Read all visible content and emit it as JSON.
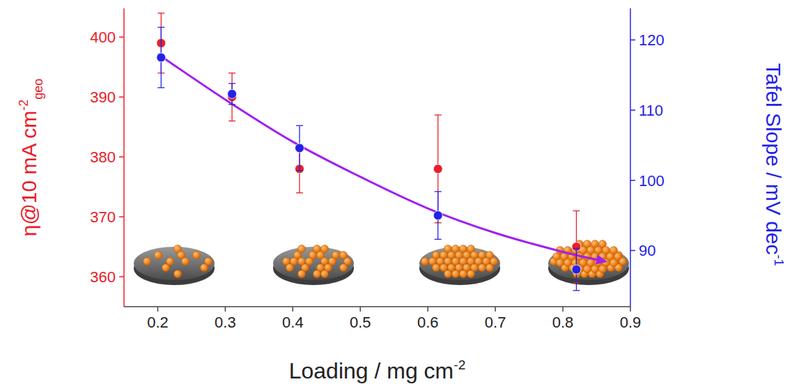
{
  "chart_data": {
    "type": "scatter",
    "xlabel": {
      "text": "Loading / mg cm",
      "sup": "-2"
    },
    "ylabel": {
      "text": "η@10 mA cm",
      "sup": "-2",
      "sub": "geo"
    },
    "y2label": {
      "text": "Tafel Slope / mV dec",
      "sup": "-1"
    },
    "xlim": [
      0.15,
      0.9
    ],
    "xticks": [
      {
        "value": 0.2,
        "label": "0.2"
      },
      {
        "value": 0.3,
        "label": "0.3"
      },
      {
        "value": 0.4,
        "label": "0.4"
      },
      {
        "value": 0.5,
        "label": "0.5"
      },
      {
        "value": 0.6,
        "label": "0.6"
      },
      {
        "value": 0.7,
        "label": "0.7"
      },
      {
        "value": 0.8,
        "label": "0.8"
      },
      {
        "value": 0.9,
        "label": "0.9"
      }
    ],
    "ylim": [
      355,
      404.8
    ],
    "yticks": [
      360,
      370,
      380,
      390,
      400
    ],
    "y2lim": [
      82,
      124.5
    ],
    "y2ticks": [
      90,
      100,
      110,
      120
    ],
    "grid": false,
    "series": [
      {
        "type": "scatter",
        "color": "#e8202a",
        "marker": "circle",
        "x": [
          0.205,
          0.31,
          0.41,
          0.615,
          0.82
        ],
        "values": [
          399,
          390,
          378,
          378,
          365
        ],
        "errors": [
          5,
          4,
          4,
          9,
          6
        ]
      },
      {
        "type": "scatter",
        "color": "#2323e6",
        "marker": "circle",
        "axis": "y2",
        "x": [
          0.205,
          0.31,
          0.41,
          0.615,
          0.82
        ],
        "values": [
          117.5,
          112.3,
          104.6,
          95,
          87.3
        ],
        "errors": [
          4.3,
          1.5,
          3.2,
          3.4,
          3
        ]
      },
      {
        "type": "line",
        "color": "#a020f0",
        "marker": "arrow",
        "line_style": "solid",
        "axis": "y2",
        "x": [
          0.2,
          0.3,
          0.4,
          0.5,
          0.6,
          0.7,
          0.8,
          0.86
        ],
        "values": [
          118,
          111.5,
          105.5,
          100.5,
          96,
          92.5,
          89.8,
          88.5
        ]
      }
    ]
  }
}
